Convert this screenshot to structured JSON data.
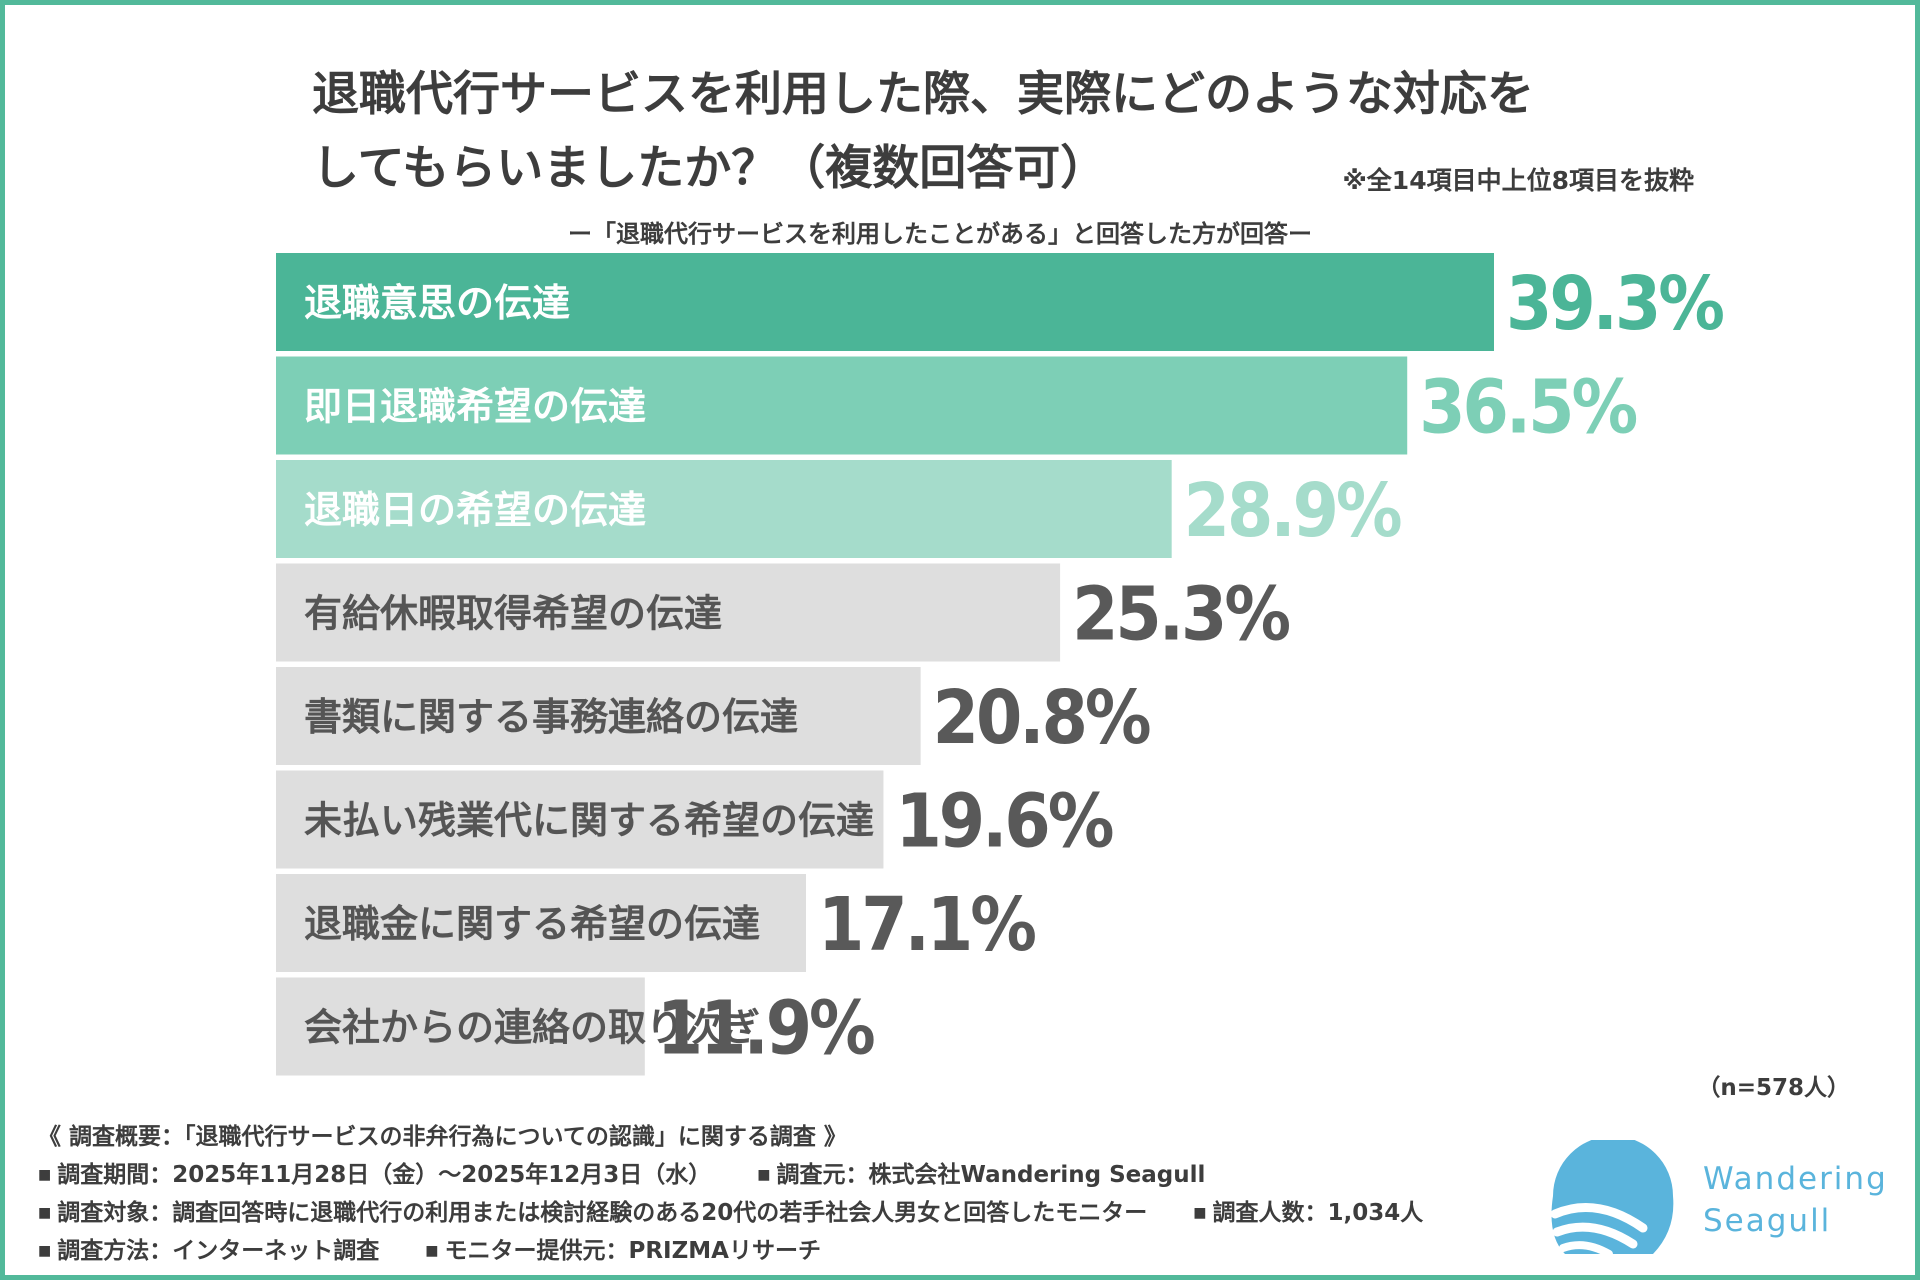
{
  "title": {
    "line1": "退職代行サービスを利用した際、実際にどのような対応を",
    "line2": "してもらいましたか？（複数回答可）"
  },
  "note_top": "※全14項目中上位8項目を抜粋",
  "subtitle": "ー「退職代行サービスを利用したことがある」と回答した方が回答ー",
  "chart_data": {
    "type": "bar",
    "orientation": "horizontal",
    "title": "退職代行サービスを利用した際、実際にどのような対応をしてもらいましたか？（複数回答可）",
    "xlabel": "",
    "ylabel": "",
    "unit": "%",
    "xlim": [
      0,
      45
    ],
    "categories": [
      "退職意思の伝達",
      "即日退職希望の伝達",
      "退職日の希望の伝達",
      "有給休暇取得希望の伝達",
      "書類に関する事務連絡の伝達",
      "未払い残業代に関する希望の伝達",
      "退職金に関する希望の伝達",
      "会社からの連絡の取り次ぎ"
    ],
    "values": [
      39.3,
      36.5,
      28.9,
      25.3,
      20.8,
      19.6,
      17.1,
      11.9
    ],
    "value_labels": [
      "39.3%",
      "36.5%",
      "28.9%",
      "25.3%",
      "20.8%",
      "19.6%",
      "17.1%",
      "11.9%"
    ],
    "bar_colors": [
      "#4bb597",
      "#7dcfb6",
      "#a5dccb",
      "#dedede",
      "#dedede",
      "#dedede",
      "#dedede",
      "#dedede"
    ],
    "label_colors": [
      "#ffffff",
      "#ffffff",
      "#ffffff",
      "#555555",
      "#555555",
      "#555555",
      "#555555",
      "#555555"
    ],
    "value_colors": [
      "#4bb597",
      "#7dcfb6",
      "#a5dccb",
      "#595959",
      "#595959",
      "#595959",
      "#595959",
      "#595959"
    ]
  },
  "n_label": "（n=578人）",
  "survey": {
    "heading": "《 調査概要：「退職代行サービスの非弁行為についての認識」に関する調査 》",
    "bullet": "■",
    "period": "調査期間：2025年11月28日（金）～2025年12月3日（水）",
    "source": "調査元：株式会社Wandering Seagull",
    "target": "調査対象：調査回答時に退職代行の利用または検討経験のある20代の若手社会人男女と回答したモニター",
    "count": "調査人数：1,034人",
    "method": "調査方法：インターネット調査",
    "provider": "モニター提供元：PRIZMAリサーチ"
  },
  "logo": {
    "line1": "Wandering",
    "line2": "Seagull",
    "color": "#5ab4dc"
  }
}
